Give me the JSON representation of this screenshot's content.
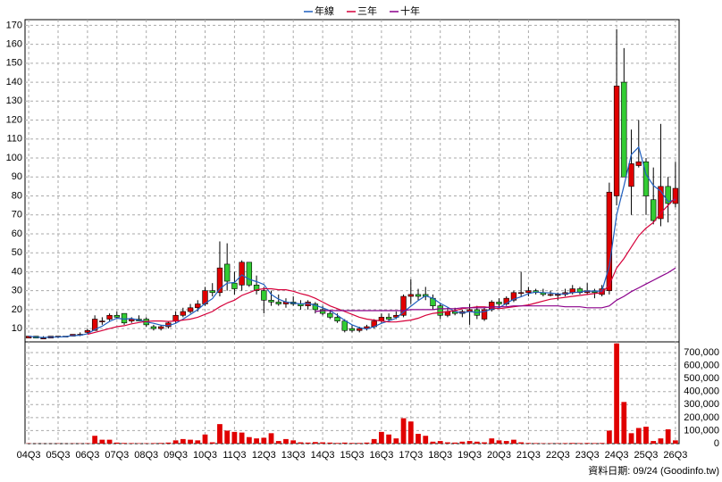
{
  "chart_data": [
    {
      "type": "candlestick",
      "legend": "top",
      "grid": true,
      "up_color": "#e00000",
      "down_color": "#33cc33",
      "categories": [
        "04Q3",
        null,
        null,
        null,
        "05Q3",
        null,
        null,
        null,
        "06Q3",
        null,
        null,
        null,
        "07Q3",
        null,
        null,
        null,
        "08Q3",
        null,
        null,
        null,
        "09Q3",
        null,
        null,
        null,
        "10Q3",
        null,
        null,
        null,
        "11Q3",
        null,
        null,
        null,
        "12Q3",
        null,
        null,
        null,
        "13Q3",
        null,
        null,
        null,
        "14Q3",
        null,
        null,
        null,
        "15Q3",
        null,
        null,
        null,
        "16Q3",
        null,
        null,
        null,
        "17Q3",
        null,
        null,
        null,
        "18Q3",
        null,
        null,
        null,
        "19Q3",
        null,
        null,
        null,
        "20Q3",
        null,
        null,
        null,
        "21Q3",
        null,
        null,
        null,
        "22Q3",
        null,
        null,
        null,
        "23Q3",
        null,
        null,
        null,
        "24Q3",
        null,
        null,
        null,
        "25Q3",
        null,
        null,
        null,
        "26Q3"
      ],
      "open": [
        5,
        6,
        5,
        5,
        6,
        6,
        6,
        7,
        8,
        9,
        14,
        15,
        17,
        18,
        14,
        15,
        15,
        11,
        10,
        11,
        14,
        17,
        19,
        21,
        23,
        30,
        29,
        44,
        34,
        33,
        45,
        33,
        30,
        25,
        24,
        23,
        24,
        23,
        22,
        23,
        20,
        18,
        16,
        14,
        10,
        9,
        10,
        11,
        14,
        16,
        16,
        17,
        27,
        28,
        28,
        26,
        22,
        17,
        19,
        18,
        19,
        20,
        15,
        20,
        24,
        23,
        25,
        29,
        29,
        30,
        29,
        28,
        28,
        28,
        29,
        31,
        29,
        30,
        28,
        30,
        80,
        140,
        85,
        96,
        98,
        78,
        68,
        85,
        76
      ],
      "high": [
        6,
        6,
        6,
        6,
        6,
        6,
        7,
        8,
        10,
        17,
        16,
        18,
        19,
        18,
        16,
        17,
        16,
        12,
        12,
        14,
        19,
        21,
        23,
        25,
        32,
        34,
        56,
        55,
        40,
        46,
        45,
        38,
        32,
        30,
        28,
        26,
        27,
        25,
        25,
        24,
        22,
        20,
        18,
        15,
        12,
        11,
        12,
        15,
        18,
        18,
        19,
        28,
        36,
        31,
        32,
        28,
        23,
        21,
        21,
        20,
        23,
        22,
        21,
        25,
        26,
        27,
        30,
        40,
        32,
        31,
        31,
        30,
        29,
        31,
        33,
        32,
        34,
        31,
        33,
        87,
        168,
        158,
        115,
        120,
        100,
        95,
        118,
        90,
        98
      ],
      "low": [
        5,
        5,
        5,
        5,
        5,
        6,
        6,
        6,
        7,
        9,
        12,
        14,
        15,
        12,
        13,
        14,
        11,
        9,
        9,
        10,
        13,
        16,
        18,
        19,
        22,
        27,
        27,
        30,
        28,
        30,
        32,
        28,
        18,
        22,
        22,
        21,
        22,
        20,
        20,
        18,
        17,
        15,
        13,
        8,
        8,
        8,
        9,
        10,
        13,
        14,
        15,
        16,
        23,
        25,
        25,
        20,
        15,
        16,
        17,
        16,
        12,
        15,
        14,
        19,
        21,
        22,
        24,
        27,
        27,
        28,
        27,
        27,
        25,
        27,
        28,
        28,
        28,
        26,
        27,
        28,
        75,
        90,
        70,
        95,
        70,
        65,
        64,
        66,
        74
      ],
      "close": [
        6,
        5,
        5,
        6,
        6,
        6,
        7,
        7,
        9,
        15,
        14,
        17,
        16,
        13,
        15,
        14,
        12,
        10,
        11,
        13,
        17,
        19,
        21,
        23,
        30,
        29,
        42,
        35,
        31,
        45,
        33,
        30,
        25,
        24,
        23,
        24,
        23,
        22,
        24,
        20,
        18,
        16,
        14,
        9,
        9,
        10,
        11,
        14,
        16,
        15,
        17,
        27,
        28,
        27,
        27,
        22,
        17,
        19,
        18,
        19,
        20,
        17,
        20,
        24,
        23,
        26,
        29,
        29,
        30,
        29,
        28,
        28,
        28,
        29,
        31,
        29,
        30,
        29,
        31,
        82,
        138,
        90,
        97,
        98,
        80,
        67,
        85,
        76,
        84
      ],
      "series": [
        {
          "name": "年線",
          "color": "#1f5fbf",
          "values": [
            6,
            5.5,
            5.3,
            5.5,
            5.5,
            5.8,
            6.3,
            6.5,
            7.3,
            9.5,
            11.3,
            13.8,
            15.5,
            15,
            15.3,
            14.5,
            13.5,
            12.8,
            11.8,
            11.5,
            12.8,
            15,
            17.5,
            20,
            23.3,
            25.8,
            31,
            34,
            34.3,
            38.3,
            36,
            34.8,
            33.3,
            28,
            25.5,
            24,
            23.5,
            23,
            23.3,
            22.3,
            21,
            19.5,
            17,
            14.3,
            12,
            10.5,
            9.8,
            11,
            12.8,
            14,
            15.5,
            18.8,
            21.8,
            24.8,
            27.3,
            26,
            23.3,
            21.3,
            19,
            18.3,
            19,
            18.5,
            19,
            20.3,
            21,
            23.3,
            25.5,
            26.8,
            28.5,
            29.3,
            29,
            28.8,
            28.3,
            28.3,
            29,
            29.3,
            29.8,
            29.8,
            29.8,
            43,
            70,
            85.3,
            101.8,
            105.8,
            91.3,
            85.5,
            82.5,
            77,
            78
          ]
        },
        {
          "name": "三年",
          "color": "#d6003a",
          "values": [
            null,
            null,
            null,
            null,
            null,
            null,
            null,
            null,
            7,
            8,
            9,
            10,
            11,
            11.5,
            12.5,
            13.2,
            13.8,
            14,
            14,
            13.8,
            14,
            14.5,
            15,
            16,
            17.5,
            19,
            21.5,
            23.5,
            25,
            27.5,
            29,
            30.5,
            31,
            31,
            30.5,
            30.5,
            29.7,
            28.5,
            27.5,
            26,
            24,
            22,
            20.5,
            19,
            17.5,
            16,
            15,
            14.5,
            14,
            13.5,
            13.5,
            14,
            14.5,
            15.5,
            17,
            18,
            18.5,
            19,
            19.5,
            20.5,
            21,
            21.5,
            21.5,
            21,
            20.5,
            21,
            21.5,
            22,
            22.5,
            23.5,
            24.5,
            25.5,
            26,
            26.5,
            27,
            27.5,
            28,
            28.5,
            29,
            33,
            42,
            47,
            53,
            59,
            63,
            66,
            71,
            75,
            79
          ]
        },
        {
          "name": "十年",
          "color": "#8b008b",
          "values": [
            null,
            null,
            null,
            null,
            null,
            null,
            null,
            null,
            null,
            null,
            null,
            null,
            null,
            null,
            null,
            null,
            null,
            null,
            null,
            null,
            null,
            null,
            null,
            null,
            null,
            null,
            null,
            null,
            null,
            null,
            null,
            null,
            null,
            null,
            null,
            null,
            null,
            null,
            null,
            19,
            19.5,
            19.5,
            19.5,
            19.5,
            19.5,
            19.5,
            19.5,
            19.5,
            19.5,
            19.5,
            19.5,
            19.5,
            20,
            20,
            20,
            20,
            20.5,
            20.5,
            20.5,
            21,
            21,
            21,
            21,
            21.5,
            21.5,
            21.5,
            22,
            22,
            22,
            22,
            22,
            22,
            22,
            21.5,
            21.5,
            21.5,
            21,
            21,
            21,
            22,
            25,
            27,
            29.5,
            31.5,
            33.5,
            35.5,
            37.5,
            39.5,
            42
          ]
        }
      ],
      "ylim": [
        3,
        173
      ],
      "yticks": [
        10,
        20,
        30,
        40,
        50,
        60,
        70,
        80,
        90,
        100,
        110,
        120,
        130,
        140,
        150,
        160,
        170
      ]
    },
    {
      "type": "bar",
      "color": "#e00000",
      "values": [
        2000,
        1000,
        1000,
        1000,
        2000,
        1000,
        2000,
        2000,
        3000,
        60000,
        30000,
        30000,
        8000,
        5000,
        4000,
        3000,
        3000,
        4000,
        5000,
        8000,
        25000,
        35000,
        30000,
        25000,
        70000,
        10000,
        150000,
        100000,
        90000,
        85000,
        50000,
        40000,
        45000,
        80000,
        20000,
        35000,
        25000,
        10000,
        8000,
        12000,
        10000,
        8000,
        5000,
        8000,
        5000,
        5000,
        8000,
        35000,
        90000,
        70000,
        40000,
        195000,
        170000,
        75000,
        60000,
        15000,
        20000,
        10000,
        8000,
        15000,
        20000,
        15000,
        10000,
        40000,
        25000,
        20000,
        30000,
        10000,
        5000,
        4000,
        3000,
        3000,
        3000,
        4000,
        5000,
        4000,
        5000,
        4000,
        5000,
        100000,
        770000,
        320000,
        80000,
        120000,
        130000,
        20000,
        40000,
        110000,
        25000
      ],
      "ylim": [
        0,
        782000
      ],
      "yticks": [
        0,
        {
          "value": 100000,
          "label": "100,000"
        },
        {
          "value": 200000,
          "label": "200,000"
        },
        {
          "value": 300000,
          "label": "300,000"
        },
        {
          "value": 400000,
          "label": "400,000"
        },
        {
          "value": 500000,
          "label": "500,000"
        },
        {
          "value": 600000,
          "label": "600,000"
        },
        {
          "value": 700000,
          "label": "700,000"
        }
      ],
      "annotation": "資料日期: 09/24 (Goodinfo.tw)"
    }
  ]
}
